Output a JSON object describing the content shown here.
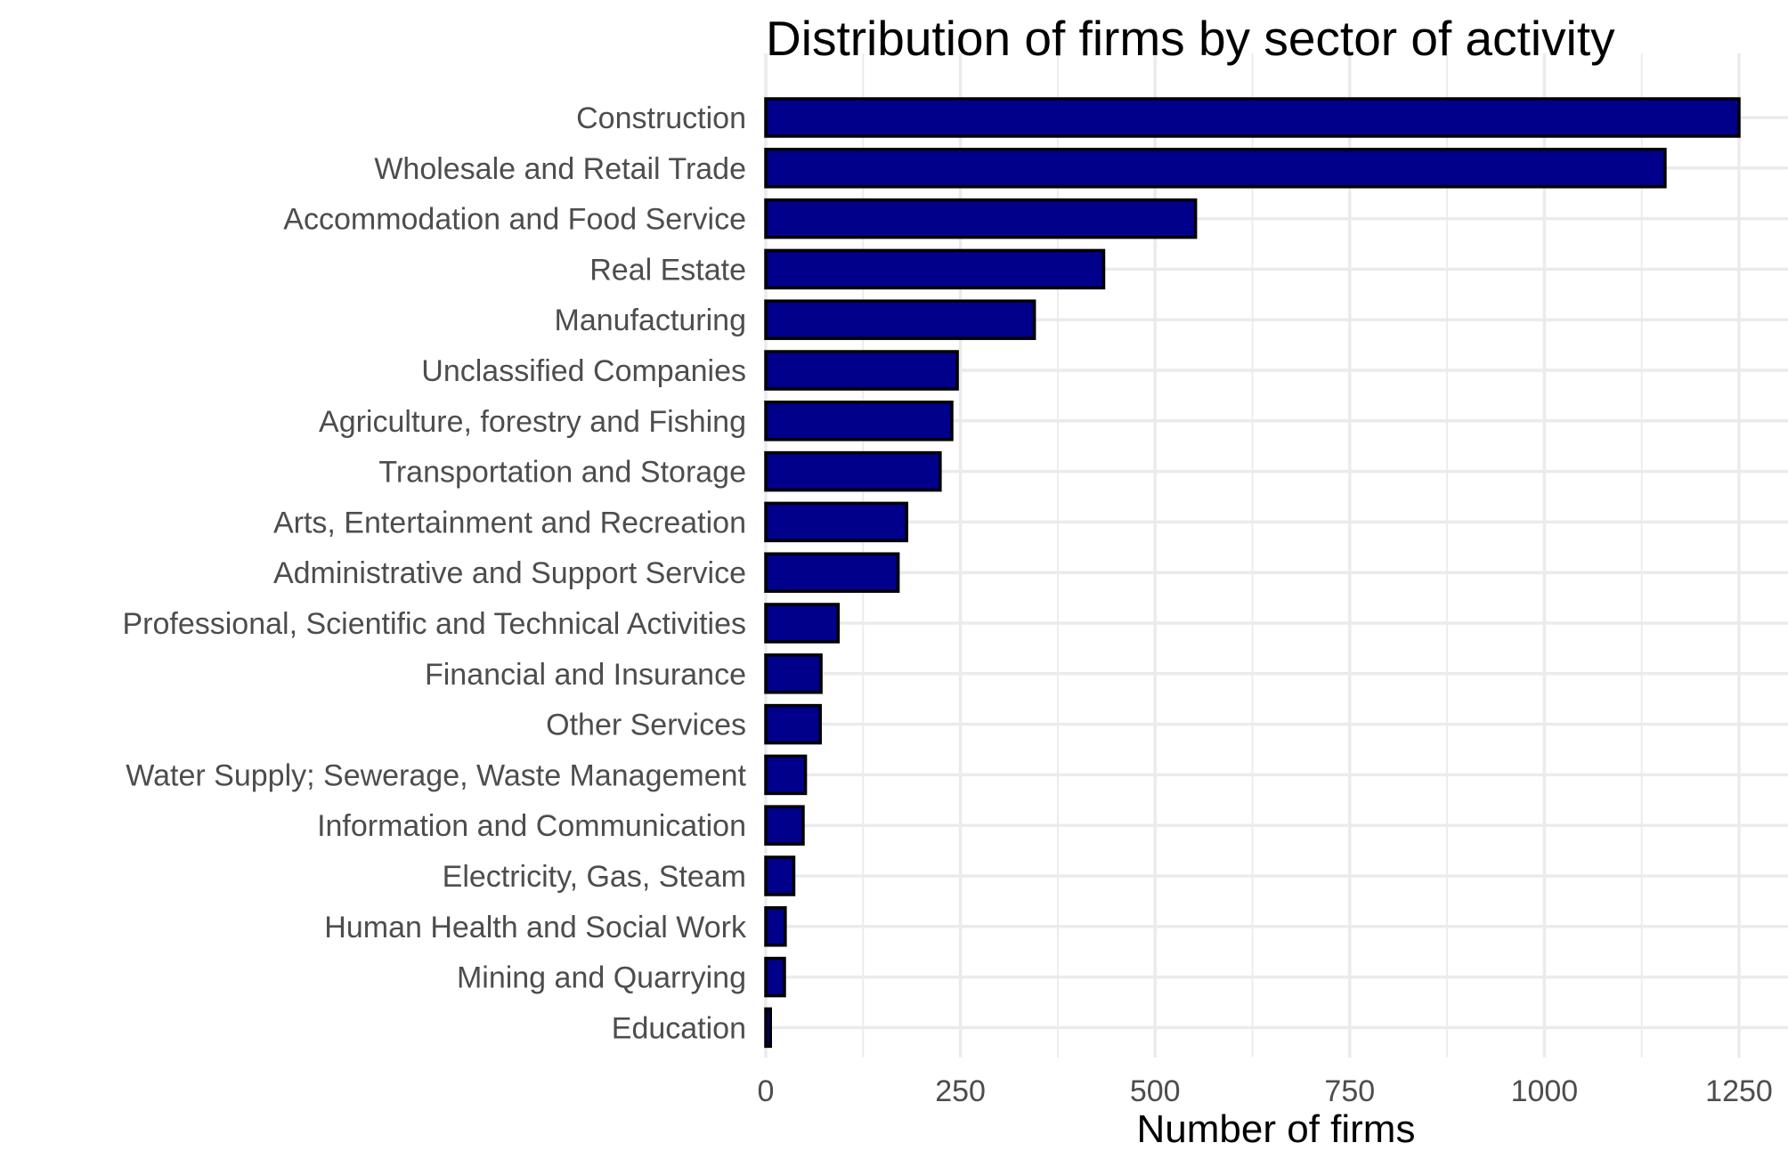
{
  "chart_data": {
    "type": "bar",
    "orientation": "horizontal",
    "title": "Distribution of firms by sector of activity",
    "xlabel": "Number of firms",
    "ylabel": "",
    "xlim": [
      0,
      1300
    ],
    "x_ticks": [
      0,
      250,
      500,
      750,
      1000,
      1250
    ],
    "x_tick_labels": [
      "0",
      "250",
      "500",
      "750",
      "1000",
      "1250"
    ],
    "grid": true,
    "bar_color": "#00008b",
    "bar_outline": "#000000",
    "categories": [
      "Construction",
      "Wholesale and Retail Trade",
      "Accommodation and Food Service",
      "Real Estate",
      "Manufacturing",
      "Unclassified Companies",
      "Agriculture, forestry and Fishing",
      "Transportation and Storage",
      "Arts, Entertainment and Recreation",
      "Administrative and Support Service",
      "Professional, Scientific and Technical Activities",
      "Financial and Insurance",
      "Other Services",
      "Water Supply; Sewerage, Waste Management",
      "Information and Communication",
      "Electricity, Gas, Steam",
      "Human Health and Social Work",
      "Mining and Quarrying",
      "Education"
    ],
    "values": [
      1250,
      1155,
      552,
      434,
      345,
      246,
      239,
      224,
      181,
      170,
      93,
      71,
      70,
      51,
      48,
      36,
      25,
      24,
      6
    ]
  }
}
